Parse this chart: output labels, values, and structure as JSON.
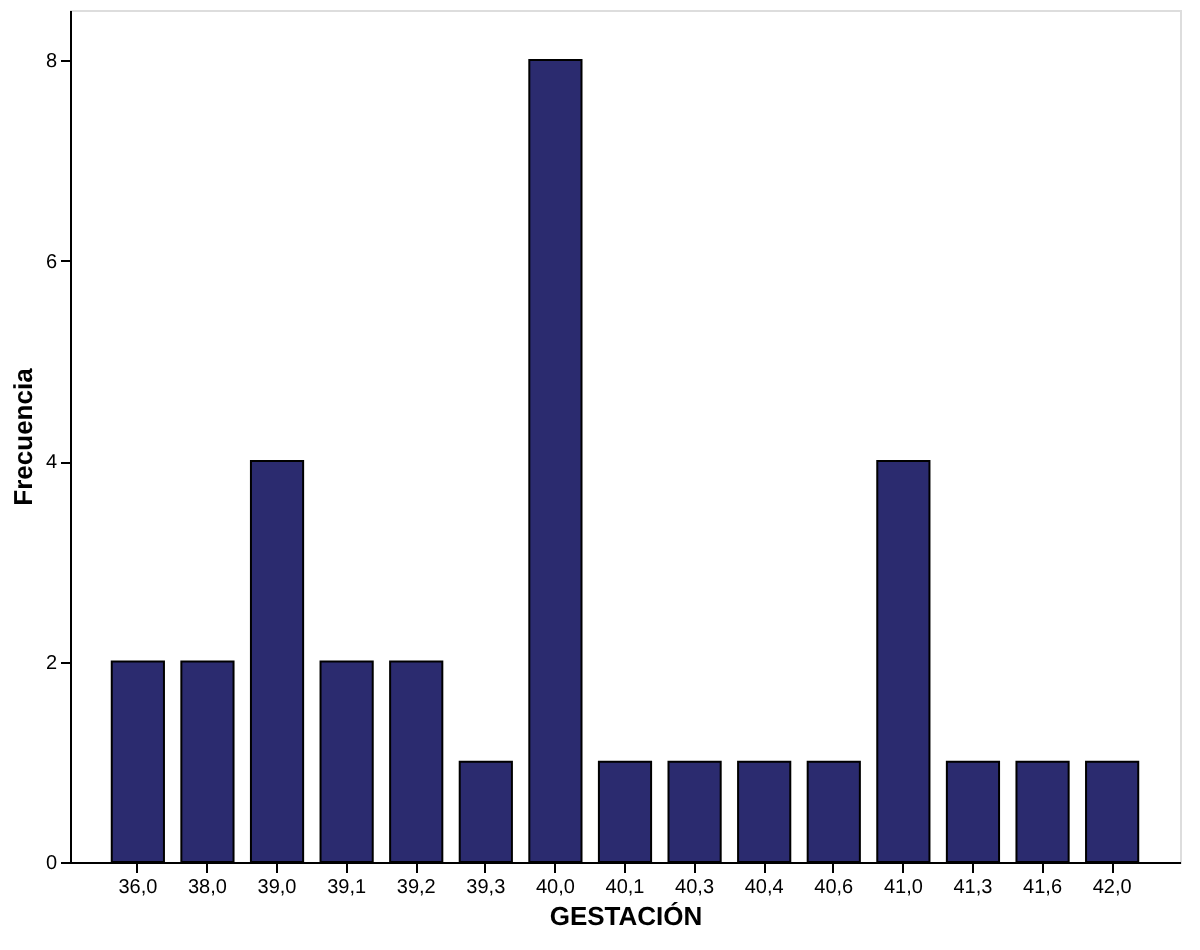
{
  "chart_data": {
    "type": "bar",
    "xlabel": "GESTACIÓN",
    "ylabel": "Frecuencia",
    "categories": [
      "36,0",
      "38,0",
      "39,0",
      "39,1",
      "39,2",
      "39,3",
      "40,0",
      "40,1",
      "40,3",
      "40,4",
      "40,6",
      "41,0",
      "41,3",
      "41,6",
      "42,0"
    ],
    "values": [
      2,
      2,
      4,
      2,
      2,
      1,
      8,
      1,
      1,
      1,
      1,
      4,
      1,
      1,
      1
    ],
    "color": "#2b2b6f",
    "ylim": [
      0,
      8.5
    ],
    "yticks": [
      0,
      2,
      4,
      6,
      8
    ],
    "grid": false
  }
}
